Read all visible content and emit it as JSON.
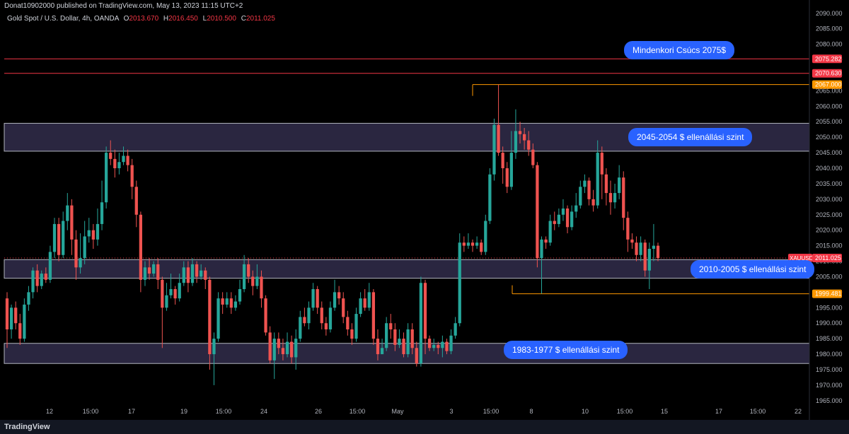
{
  "header": {
    "published_text": "Donat10902000 published on TradingView.com, May 13, 2023 11:15 UTC+2",
    "symbol_text": "Gold Spot / U.S. Dollar, 4h, OANDA",
    "ohlc": {
      "o_label": "O",
      "o": "2013.670",
      "h_label": "H",
      "h": "2016.450",
      "l_label": "L",
      "l": "2010.500",
      "c_label": "C",
      "c": "2011.025"
    }
  },
  "footer": {
    "brand": "TradingView"
  },
  "annotations": [
    {
      "text": "Mindenkori Csúcs 2075$"
    },
    {
      "text": "2045-2054 $ ellenállási szint"
    },
    {
      "text": "2010-2005 $ ellenállási szint"
    },
    {
      "text": "1983-1977 $ ellenállási szint"
    }
  ],
  "colors": {
    "up": "#26a69a",
    "down": "#ef5350",
    "zone": "#2a2640",
    "zone_border": "#b2b5be",
    "red_line": "#f23645",
    "orange_line": "#ff9800",
    "label_blue": "#2962ff"
  },
  "chart_data": {
    "type": "candlestick",
    "ylim": [
      1962,
      2092
    ],
    "y_ticks": [
      "2090.000",
      "2085.000",
      "2080.000",
      "2075.000",
      "2070.000",
      "2065.000",
      "2060.000",
      "2055.000",
      "2050.000",
      "2045.000",
      "2040.000",
      "2035.000",
      "2030.000",
      "2025.000",
      "2020.000",
      "2015.000",
      "2010.000",
      "2005.000",
      "2000.000",
      "1995.000",
      "1990.000",
      "1985.000",
      "1980.000",
      "1975.000",
      "1970.000",
      "1965.000"
    ],
    "x_ticks": [
      "12",
      "15:00",
      "17",
      "19",
      "15:00",
      "24",
      "26",
      "15:00",
      "May",
      "3",
      "15:00",
      "8",
      "10",
      "15:00",
      "15",
      "17",
      "15:00",
      "22"
    ],
    "zones": [
      {
        "low": 2045.5,
        "high": 2054.5
      },
      {
        "low": 2004.5,
        "high": 2010.5
      },
      {
        "low": 1977.0,
        "high": 1983.5
      }
    ],
    "price_lines": [
      {
        "value": 2075.282,
        "label": "2075.282",
        "color": "red"
      },
      {
        "value": 2070.63,
        "label": "2070.630",
        "color": "red"
      },
      {
        "value": 2067.0,
        "label": "2067.000",
        "color": "orange"
      },
      {
        "value": 1999.481,
        "label": "1999.481",
        "color": "orange"
      }
    ],
    "last_price": {
      "symbol": "XAUUSD",
      "value": 2011.025,
      "label": "2011.025"
    },
    "candles": [
      [
        1998,
        1988,
        2000,
        1982
      ],
      [
        1988,
        1995,
        1996,
        1985
      ],
      [
        1995,
        1990,
        1997,
        1988
      ],
      [
        1990,
        1985,
        1993,
        1983
      ],
      [
        1985,
        1996,
        1998,
        1984
      ],
      [
        1996,
        2000,
        2002,
        1994
      ],
      [
        2000,
        2007,
        2008,
        1998
      ],
      [
        2007,
        2002,
        2009,
        2000
      ],
      [
        2002,
        2006,
        2007,
        2001
      ],
      [
        2006,
        2004,
        2008,
        2003
      ],
      [
        2004,
        2013,
        2015,
        2003
      ],
      [
        2013,
        2022,
        2024,
        2011
      ],
      [
        2022,
        2012,
        2024,
        2010
      ],
      [
        2012,
        2023,
        2026,
        2011
      ],
      [
        2023,
        2028,
        2032,
        2020
      ],
      [
        2028,
        2017,
        2030,
        2012
      ],
      [
        2017,
        2008,
        2020,
        2004
      ],
      [
        2008,
        2011,
        2019,
        2006
      ],
      [
        2011,
        2018,
        2023,
        2009
      ],
      [
        2018,
        2020,
        2024,
        2016
      ],
      [
        2020,
        2017,
        2022,
        2014
      ],
      [
        2017,
        2022,
        2027,
        2015
      ],
      [
        2022,
        2029,
        2036,
        2020
      ],
      [
        2029,
        2045,
        2047,
        2027
      ],
      [
        2045,
        2043,
        2049,
        2041
      ],
      [
        2043,
        2040,
        2046,
        2037
      ],
      [
        2040,
        2042,
        2045,
        2038
      ],
      [
        2042,
        2044,
        2047,
        2041
      ],
      [
        2044,
        2041,
        2046,
        2039
      ],
      [
        2041,
        2034,
        2043,
        2030
      ],
      [
        2034,
        2025,
        2036,
        2021
      ],
      [
        2025,
        2004,
        2026,
        2000
      ],
      [
        2004,
        2008,
        2010,
        2002
      ],
      [
        2008,
        2006,
        2011,
        2004
      ],
      [
        2006,
        2009,
        2010,
        2005
      ],
      [
        2009,
        2004,
        2011,
        2001
      ],
      [
        2004,
        1995,
        2005,
        1982
      ],
      [
        1995,
        1999,
        2003,
        1994
      ],
      [
        1999,
        2001,
        2006,
        1998
      ],
      [
        2001,
        1998,
        2002,
        1996
      ],
      [
        1998,
        2003,
        2006,
        1997
      ],
      [
        2003,
        2008,
        2010,
        2002
      ],
      [
        2008,
        2003,
        2010,
        2000
      ],
      [
        2003,
        2009,
        2011,
        2002
      ],
      [
        2009,
        2005,
        2010,
        2003
      ],
      [
        2005,
        2007,
        2009,
        2004
      ],
      [
        2007,
        2004,
        2008,
        2001
      ],
      [
        2004,
        1980,
        2005,
        1975
      ],
      [
        1980,
        1985,
        1987,
        1970
      ],
      [
        1985,
        1998,
        2000,
        1984
      ],
      [
        1998,
        1996,
        2000,
        1993
      ],
      [
        1996,
        1998,
        2000,
        1995
      ],
      [
        1998,
        1995,
        2000,
        1993
      ],
      [
        1995,
        1997,
        1999,
        1994
      ],
      [
        1997,
        2001,
        2004,
        1996
      ],
      [
        2001,
        2009,
        2012,
        2000
      ],
      [
        2009,
        2005,
        2011,
        2003
      ],
      [
        2005,
        2002,
        2007,
        1999
      ],
      [
        2002,
        2005,
        2009,
        2001
      ],
      [
        2005,
        1998,
        2007,
        1995
      ],
      [
        1998,
        1987,
        1999,
        1986
      ],
      [
        1987,
        1978,
        1989,
        1977
      ],
      [
        1978,
        1985,
        1987,
        1972
      ],
      [
        1985,
        1982,
        1987,
        1980
      ],
      [
        1982,
        1980,
        1985,
        1978
      ],
      [
        1980,
        1984,
        1987,
        1979
      ],
      [
        1984,
        1979,
        1986,
        1977
      ],
      [
        1979,
        1985,
        1988,
        1975
      ],
      [
        1985,
        1992,
        1994,
        1984
      ],
      [
        1992,
        1990,
        1995,
        1989
      ],
      [
        1990,
        1995,
        1997,
        1988
      ],
      [
        1995,
        2001,
        2003,
        1994
      ],
      [
        2001,
        1995,
        2002,
        1993
      ],
      [
        1995,
        1990,
        1997,
        1988
      ],
      [
        1990,
        1988,
        1992,
        1986
      ],
      [
        1988,
        1995,
        1997,
        1987
      ],
      [
        1995,
        2000,
        2004,
        1994
      ],
      [
        2000,
        1998,
        2002,
        1996
      ],
      [
        1998,
        1992,
        2000,
        1990
      ],
      [
        1992,
        1988,
        1994,
        1986
      ],
      [
        1988,
        1985,
        1990,
        1983
      ],
      [
        1985,
        1993,
        1995,
        1984
      ],
      [
        1993,
        1998,
        2000,
        1992
      ],
      [
        1998,
        1995,
        2001,
        1994
      ],
      [
        1995,
        2000,
        2003,
        1994
      ],
      [
        2000,
        1985,
        2001,
        1983
      ],
      [
        1985,
        1980,
        1988,
        1978
      ],
      [
        1980,
        1982,
        1985,
        1980
      ],
      [
        1982,
        1990,
        1992,
        1981
      ],
      [
        1990,
        1988,
        1993,
        1985
      ],
      [
        1988,
        1983,
        1990,
        1981
      ],
      [
        1983,
        1985,
        1988,
        1982
      ],
      [
        1985,
        1980,
        1987,
        1979
      ],
      [
        1980,
        1988,
        1990,
        1979
      ],
      [
        1988,
        1982,
        1990,
        1980
      ],
      [
        1982,
        1977,
        1984,
        1976
      ],
      [
        1977,
        2003,
        2005,
        1976
      ],
      [
        2003,
        1985,
        2004,
        1980
      ],
      [
        1985,
        1982,
        1986,
        1981
      ],
      [
        1982,
        1983,
        1985,
        1981
      ],
      [
        1983,
        1982,
        1984,
        1980
      ],
      [
        1982,
        1984,
        1986,
        1979
      ],
      [
        1984,
        1981,
        1985,
        1980
      ],
      [
        1981,
        1986,
        1988,
        1980
      ],
      [
        1986,
        1990,
        1992,
        1985
      ],
      [
        1990,
        2016,
        2019,
        1989
      ],
      [
        2016,
        2015,
        2018,
        2013
      ],
      [
        2015,
        2016,
        2019,
        2014
      ],
      [
        2016,
        2015,
        2017,
        2013
      ],
      [
        2015,
        2016,
        2018,
        2014
      ],
      [
        2016,
        2013,
        2017,
        2012
      ],
      [
        2013,
        2023,
        2025,
        2012
      ],
      [
        2023,
        2038,
        2040,
        2022
      ],
      [
        2038,
        2054,
        2056,
        2036
      ],
      [
        2054,
        2045,
        2067,
        2044
      ],
      [
        2045,
        2040,
        2047,
        2035
      ],
      [
        2040,
        2034,
        2042,
        2032
      ],
      [
        2034,
        2045,
        2052,
        2033
      ],
      [
        2045,
        2052,
        2059,
        2043
      ],
      [
        2052,
        2051,
        2055,
        2048
      ],
      [
        2051,
        2049,
        2053,
        2046
      ],
      [
        2049,
        2046,
        2052,
        2044
      ],
      [
        2046,
        2041,
        2048,
        2040
      ],
      [
        2041,
        2011,
        2042,
        2008
      ],
      [
        2011,
        2017,
        2018,
        1999.5
      ],
      [
        2017,
        2016,
        2018,
        2014
      ],
      [
        2016,
        2023,
        2025,
        2015
      ],
      [
        2023,
        2022,
        2026,
        2020
      ],
      [
        2022,
        2025,
        2027,
        2021
      ],
      [
        2025,
        2027,
        2030,
        2023
      ],
      [
        2027,
        2021,
        2028,
        2019
      ],
      [
        2021,
        2026,
        2028,
        2020
      ],
      [
        2026,
        2028,
        2032,
        2024
      ],
      [
        2028,
        2034,
        2036,
        2027
      ],
      [
        2034,
        2036,
        2038,
        2032
      ],
      [
        2036,
        2030,
        2037,
        2028
      ],
      [
        2030,
        2028,
        2033,
        2026
      ],
      [
        2028,
        2045,
        2049,
        2027
      ],
      [
        2045,
        2038,
        2047,
        2030
      ],
      [
        2038,
        2032,
        2040,
        2028
      ],
      [
        2032,
        2029,
        2036,
        2025
      ],
      [
        2029,
        2032,
        2035,
        2027
      ],
      [
        2032,
        2037,
        2041,
        2030
      ],
      [
        2037,
        2024,
        2039,
        2020
      ],
      [
        2024,
        2017,
        2026,
        2013
      ],
      [
        2017,
        2016,
        2019,
        2014
      ],
      [
        2016,
        2012,
        2018,
        2010
      ],
      [
        2012,
        2016,
        2018,
        2010
      ],
      [
        2016,
        2007,
        2017,
        2005
      ],
      [
        2007,
        2014,
        2016,
        2001
      ],
      [
        2014,
        2015,
        2022,
        2010
      ],
      [
        2015,
        2011,
        2016,
        2010
      ]
    ]
  }
}
